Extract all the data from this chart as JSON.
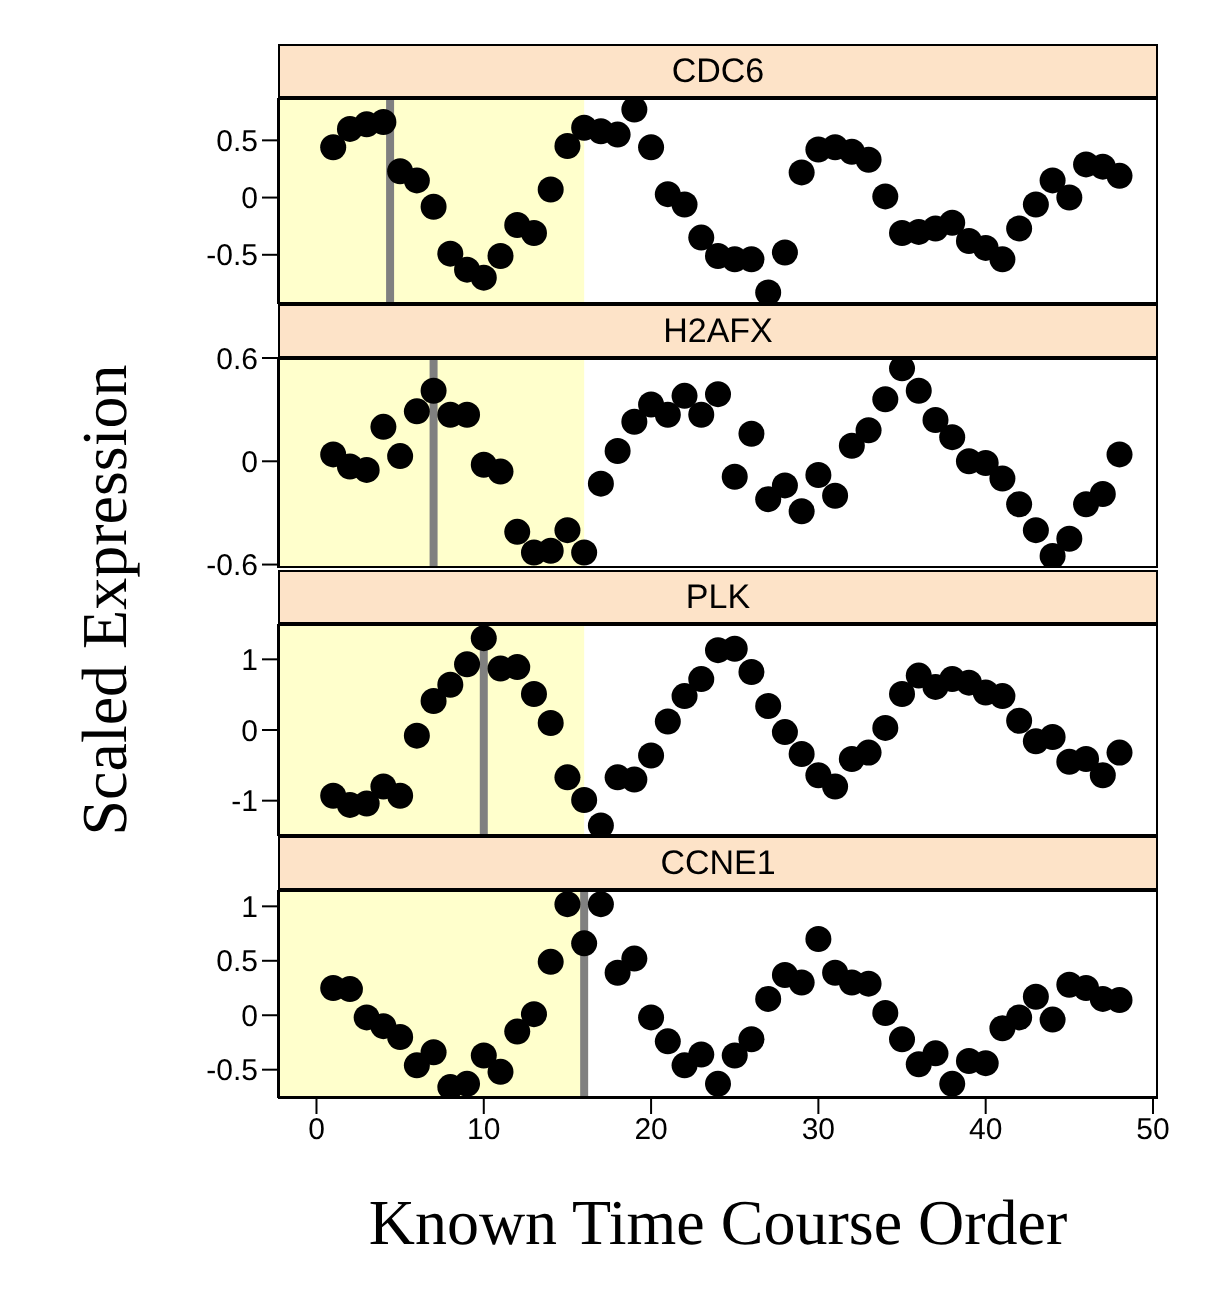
{
  "chart_data": [
    {
      "type": "scatter",
      "title": "CDC6",
      "ylabel": "Scaled Expression",
      "x": [
        1,
        2,
        3,
        4,
        5,
        6,
        7,
        8,
        9,
        10,
        11,
        12,
        13,
        14,
        15,
        16,
        17,
        18,
        19,
        20,
        21,
        22,
        23,
        24,
        25,
        26,
        27,
        28,
        29,
        30,
        31,
        32,
        33,
        34,
        35,
        36,
        37,
        38,
        39,
        40,
        41,
        42,
        43,
        44,
        45,
        46,
        47,
        48
      ],
      "values": [
        0.44,
        0.6,
        0.64,
        0.66,
        0.23,
        0.15,
        -0.08,
        -0.49,
        -0.63,
        -0.7,
        -0.51,
        -0.24,
        -0.31,
        0.07,
        0.45,
        0.61,
        0.58,
        0.55,
        0.77,
        0.44,
        0.03,
        -0.06,
        -0.35,
        -0.51,
        -0.54,
        -0.54,
        -0.83,
        -0.48,
        0.22,
        0.42,
        0.44,
        0.4,
        0.33,
        0.01,
        -0.31,
        -0.3,
        -0.27,
        -0.22,
        -0.38,
        -0.44,
        -0.54,
        -0.27,
        -0.06,
        0.15,
        0,
        0.29,
        0.27,
        0.19
      ],
      "color": "#000000",
      "marker": "circle",
      "xlim": [
        -2.3,
        50.3
      ],
      "xticks": [
        0,
        10,
        20,
        30,
        40,
        50
      ],
      "ylim": [
        -0.93,
        0.87
      ],
      "yticks": [
        -0.5,
        0,
        0.5
      ],
      "tick_labels": "y",
      "bands": [
        {
          "axis": "x",
          "from": -2.3,
          "to": 16,
          "color": "#ffffcc"
        }
      ],
      "ref_lines": [
        {
          "axis": "x",
          "value": 4.4,
          "color": "#808080"
        }
      ]
    },
    {
      "type": "scatter",
      "title": "H2AFX",
      "x": [
        1,
        2,
        3,
        4,
        5,
        6,
        7,
        8,
        9,
        10,
        11,
        12,
        13,
        14,
        15,
        16,
        17,
        18,
        19,
        20,
        21,
        22,
        23,
        24,
        25,
        26,
        27,
        28,
        29,
        30,
        31,
        32,
        33,
        34,
        35,
        36,
        37,
        38,
        39,
        40,
        41,
        42,
        43,
        44,
        45,
        46,
        47,
        48
      ],
      "values": [
        0.04,
        -0.03,
        -0.05,
        0.2,
        0.03,
        0.29,
        0.41,
        0.27,
        0.27,
        -0.02,
        -0.06,
        -0.41,
        -0.53,
        -0.52,
        -0.4,
        -0.53,
        -0.13,
        0.06,
        0.23,
        0.33,
        0.27,
        0.38,
        0.27,
        0.39,
        -0.09,
        0.16,
        -0.22,
        -0.14,
        -0.29,
        -0.08,
        -0.2,
        0.09,
        0.18,
        0.36,
        0.54,
        0.41,
        0.24,
        0.14,
        0,
        -0.01,
        -0.1,
        -0.25,
        -0.4,
        -0.55,
        -0.45,
        -0.25,
        -0.19,
        0.04
      ],
      "color": "#000000",
      "marker": "circle",
      "xlim": [
        -2.3,
        50.3
      ],
      "xticks": [
        0,
        10,
        20,
        30,
        40,
        50
      ],
      "ylim": [
        -0.62,
        0.6
      ],
      "yticks": [
        -0.6,
        0,
        0.6
      ],
      "tick_labels": "y",
      "bands": [
        {
          "axis": "x",
          "from": -2.3,
          "to": 16,
          "color": "#ffffcc"
        }
      ],
      "ref_lines": [
        {
          "axis": "x",
          "value": 7,
          "color": "#808080"
        }
      ]
    },
    {
      "type": "scatter",
      "title": "PLK",
      "x": [
        1,
        2,
        3,
        4,
        5,
        6,
        7,
        8,
        9,
        10,
        11,
        12,
        13,
        14,
        15,
        16,
        17,
        18,
        19,
        20,
        21,
        22,
        23,
        24,
        25,
        26,
        27,
        28,
        29,
        30,
        31,
        32,
        33,
        34,
        35,
        36,
        37,
        38,
        39,
        40,
        41,
        42,
        43,
        44,
        45,
        46,
        47,
        48
      ],
      "values": [
        -0.93,
        -1.06,
        -1.04,
        -0.8,
        -0.93,
        -0.08,
        0.41,
        0.64,
        0.93,
        1.3,
        0.87,
        0.89,
        0.51,
        0.1,
        -0.67,
        -0.99,
        -1.35,
        -0.67,
        -0.7,
        -0.36,
        0.12,
        0.48,
        0.72,
        1.13,
        1.15,
        0.82,
        0.34,
        -0.03,
        -0.34,
        -0.64,
        -0.8,
        -0.41,
        -0.32,
        0.03,
        0.51,
        0.77,
        0.61,
        0.72,
        0.67,
        0.53,
        0.48,
        0.13,
        -0.16,
        -0.1,
        -0.45,
        -0.41,
        -0.64,
        -0.32
      ],
      "color": "#000000",
      "marker": "circle",
      "xlim": [
        -2.3,
        50.3
      ],
      "xticks": [
        0,
        10,
        20,
        30,
        40,
        50
      ],
      "ylim": [
        -1.5,
        1.5
      ],
      "yticks": [
        -1,
        0,
        1
      ],
      "tick_labels": "y",
      "bands": [
        {
          "axis": "x",
          "from": -2.3,
          "to": 16,
          "color": "#ffffcc"
        }
      ],
      "ref_lines": [
        {
          "axis": "x",
          "value": 10,
          "color": "#808080"
        }
      ]
    },
    {
      "type": "scatter",
      "title": "CCNE1",
      "xlabel": "Known Time Course Order",
      "x": [
        1,
        2,
        3,
        4,
        5,
        6,
        7,
        8,
        9,
        10,
        11,
        12,
        13,
        14,
        15,
        16,
        17,
        18,
        19,
        20,
        21,
        22,
        23,
        24,
        25,
        26,
        27,
        28,
        29,
        30,
        31,
        32,
        33,
        34,
        35,
        36,
        37,
        38,
        39,
        40,
        41,
        42,
        43,
        44,
        45,
        46,
        47,
        48
      ],
      "values": [
        0.25,
        0.24,
        -0.02,
        -0.1,
        -0.2,
        -0.46,
        -0.34,
        -0.66,
        -0.63,
        -0.37,
        -0.52,
        -0.15,
        0.01,
        0.49,
        1.02,
        0.66,
        1.02,
        0.39,
        0.52,
        -0.02,
        -0.24,
        -0.46,
        -0.36,
        -0.63,
        -0.37,
        -0.22,
        0.15,
        0.37,
        0.3,
        0.7,
        0.39,
        0.3,
        0.29,
        0.02,
        -0.22,
        -0.45,
        -0.35,
        -0.63,
        -0.42,
        -0.44,
        -0.12,
        -0.02,
        0.17,
        -0.04,
        0.28,
        0.25,
        0.15,
        0.14
      ],
      "color": "#000000",
      "marker": "circle",
      "xlim": [
        -2.3,
        50.3
      ],
      "xticks": [
        0,
        10,
        20,
        30,
        40,
        50
      ],
      "ylim": [
        -0.76,
        1.15
      ],
      "yticks": [
        -0.5,
        0,
        0.5,
        1
      ],
      "bands": [
        {
          "axis": "x",
          "from": -2.3,
          "to": 16,
          "color": "#ffffcc"
        }
      ],
      "ref_lines": [
        {
          "axis": "x",
          "value": 16,
          "color": "#808080"
        }
      ]
    }
  ]
}
